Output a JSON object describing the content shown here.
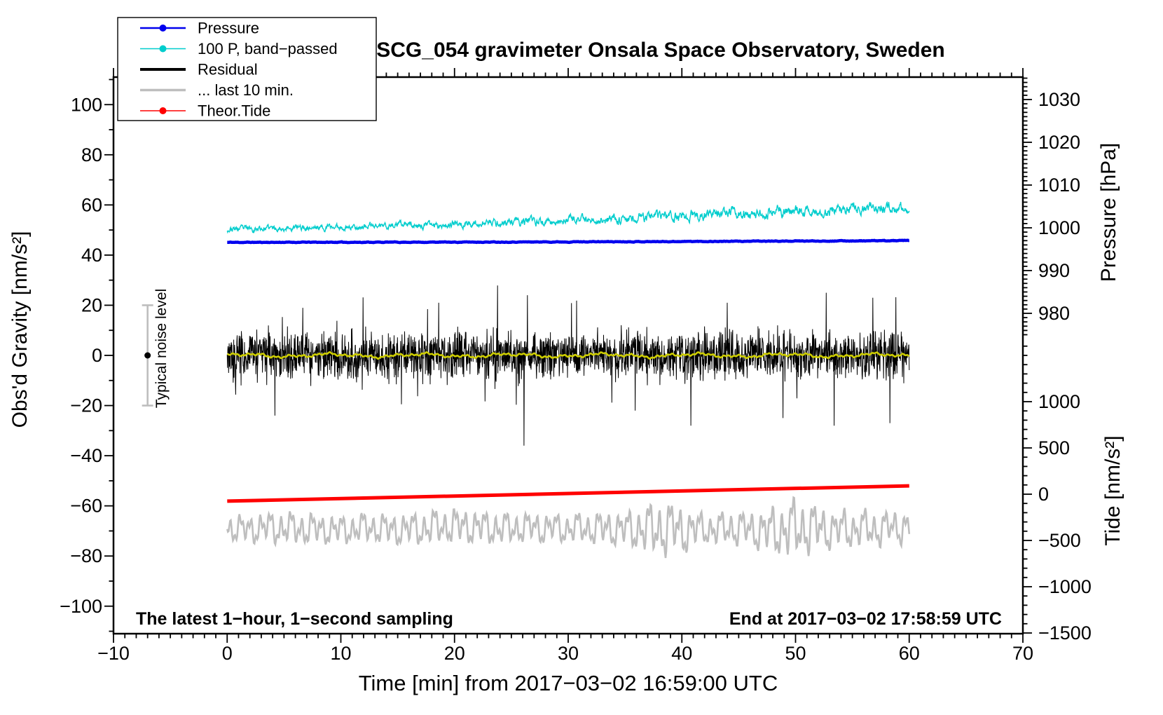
{
  "background": "#FFFFFF",
  "frame_color": "#000000",
  "chart_data": {
    "type": "line",
    "title": "SCG_054 gravimeter Onsala Space Observatory, Sweden",
    "xlabel": "Time [min] from 2017−03−02 16:59:00 UTC",
    "annotations": {
      "bottom_left": "The latest 1−hour, 1−second sampling",
      "bottom_right": "End at 2017−03−02 17:58:59 UTC",
      "noise_bar_label": "Typical noise level"
    },
    "axes": {
      "x": {
        "label": "Time [min] from 2017−03−02 16:59:00 UTC",
        "min": -10,
        "max": 70,
        "minor_step": 1,
        "major_ticks": [
          -10,
          0,
          10,
          20,
          30,
          40,
          50,
          60,
          70
        ],
        "tick_labels": [
          "−10",
          "0",
          "10",
          "20",
          "30",
          "40",
          "50",
          "60",
          "70"
        ]
      },
      "gravity": {
        "label": "Obs'd Gravity [nm/s²]",
        "min": -111,
        "max": 111,
        "minor_step": 10,
        "major_ticks": [
          -100,
          -80,
          -60,
          -40,
          -20,
          0,
          20,
          40,
          60,
          80,
          100
        ],
        "tick_labels": [
          "−100",
          "−80",
          "−60",
          "−40",
          "−20",
          "0",
          "20",
          "40",
          "60",
          "80",
          "100"
        ]
      },
      "pressure": {
        "label": "Pressure [hPa]",
        "minor_step": 1,
        "minor_range": [
          975,
          1035
        ],
        "major_ticks": [
          980,
          990,
          1000,
          1010,
          1020,
          1030
        ],
        "tick_labels": [
          "980",
          "990",
          "1000",
          "1010",
          "1020",
          "1030"
        ]
      },
      "tide": {
        "label": "Tide [nm/s²]",
        "minor_step": 100,
        "minor_range": [
          -1500,
          1600
        ],
        "major_ticks": [
          -1500,
          -1000,
          -500,
          0,
          500,
          1000
        ],
        "tick_labels": [
          "−1500",
          "−1000",
          "−500",
          "0",
          "500",
          "1000"
        ]
      }
    },
    "legend": {
      "items": [
        {
          "label": "Pressure",
          "color": "#0000EE",
          "marker": "dot",
          "line_width": 2.4
        },
        {
          "label": "100 P, band−passed",
          "color": "#00CDCD",
          "marker": "dot",
          "line_width": 1.6
        },
        {
          "label": "Residual",
          "color": "#000000",
          "marker": "none",
          "line_width": 4
        },
        {
          "label": "... last 10 min.",
          "color": "#BEBEBE",
          "marker": "none",
          "line_width": 3.4
        },
        {
          "label": "Theor.Tide",
          "color": "#FF0000",
          "marker": "dot",
          "line_width": 1.6
        }
      ]
    },
    "noise_bar": {
      "t": -7,
      "center": 0,
      "half_range": 20,
      "bar_color": "#BEBEBE",
      "dot_color": "#000000"
    },
    "series": [
      {
        "name": "residual_last10min",
        "label": "... last 10 min.",
        "axis": "gravity",
        "color": "#BEBEBE",
        "width": 2.6,
        "kind": "modulated-osc",
        "points": 950,
        "seed": 67,
        "center": -69,
        "center_drift": 2,
        "env_anchors": [
          [
            0,
            6
          ],
          [
            5,
            7.5
          ],
          [
            10,
            6.5
          ],
          [
            15,
            7
          ],
          [
            20,
            8
          ],
          [
            25,
            7
          ],
          [
            30,
            6.5
          ],
          [
            35,
            8
          ],
          [
            38.5,
            13
          ],
          [
            42,
            7
          ],
          [
            46,
            8
          ],
          [
            50,
            13.5
          ],
          [
            53,
            9
          ],
          [
            57,
            8
          ],
          [
            60,
            7
          ]
        ],
        "components": [
          [
            0.9,
            0.55
          ],
          [
            0.37,
            0.35
          ],
          [
            2.1,
            0.3
          ]
        ]
      },
      {
        "name": "theoretical_tide",
        "label": "Theor.Tide",
        "axis": "tide",
        "color": "#FF0000",
        "width": 5,
        "kind": "line",
        "anchors": [
          [
            0,
            -75
          ],
          [
            60,
            90
          ]
        ]
      },
      {
        "name": "bandpassed_pressure_x100",
        "label": "100 P, band−passed",
        "axis": "gravity",
        "color": "#00CDCD",
        "width": 1.4,
        "kind": "trend-noise",
        "points": 1600,
        "seed": 23,
        "anchors": [
          [
            0,
            50.3
          ],
          [
            5,
            50.8
          ],
          [
            10,
            51.2
          ],
          [
            15,
            51.8
          ],
          [
            20,
            52.3
          ],
          [
            25,
            53.0
          ],
          [
            30,
            53.6
          ],
          [
            35,
            54.6
          ],
          [
            40,
            55.6
          ],
          [
            45,
            56.6
          ],
          [
            50,
            57.6
          ],
          [
            55,
            58.4
          ],
          [
            60,
            59.3
          ]
        ],
        "amp_anchors": [
          [
            0,
            1.1
          ],
          [
            20,
            1.3
          ],
          [
            35,
            1.8
          ],
          [
            45,
            2.1
          ],
          [
            60,
            1.9
          ]
        ]
      },
      {
        "name": "pressure",
        "label": "Pressure",
        "axis": "pressure",
        "color": "#0000EE",
        "width": 4.5,
        "kind": "trend-noise",
        "points": 900,
        "seed": 11,
        "anchors": [
          [
            0,
            996.6
          ],
          [
            20,
            996.65
          ],
          [
            40,
            996.8
          ],
          [
            60,
            997.0
          ]
        ],
        "amp_anchors": [
          [
            0,
            0.07
          ],
          [
            60,
            0.07
          ]
        ]
      },
      {
        "name": "residual",
        "label": "Residual",
        "axis": "gravity",
        "color": "#000000",
        "width": 1,
        "kind": "noise-band",
        "points": 2400,
        "seed": 37,
        "center": 0,
        "amp": 4.6,
        "spikes": [
          [
            4.2,
            -24
          ],
          [
            18.6,
            21
          ],
          [
            26.1,
            -36
          ],
          [
            26.4,
            24
          ],
          [
            35.9,
            -22
          ],
          [
            44.0,
            21
          ],
          [
            48.9,
            -25
          ],
          [
            52.7,
            25
          ],
          [
            53.4,
            -28
          ],
          [
            56.8,
            23
          ],
          [
            58.3,
            -27
          ]
        ]
      },
      {
        "name": "residual_smoothed",
        "label": "",
        "axis": "gravity",
        "color": "#CDCD00",
        "width": 2.6,
        "kind": "smooth-wiggle",
        "points": 600,
        "seed": 51,
        "center": 0,
        "components": [
          [
            8,
            0.5,
            0.7
          ],
          [
            3,
            0.35,
            2.1
          ],
          [
            1.2,
            0.3,
            4.4
          ],
          [
            0.45,
            0.25,
            1.3
          ]
        ]
      }
    ],
    "series_time_range": [
      0,
      60
    ]
  }
}
